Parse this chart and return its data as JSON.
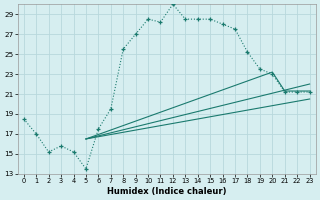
{
  "xlabel": "Humidex (Indice chaleur)",
  "background_color": "#d6eef0",
  "line_color": "#1a7a6e",
  "grid_color": "#b8d8dc",
  "xlim": [
    -0.5,
    23.5
  ],
  "ylim": [
    13,
    30
  ],
  "yticks": [
    13,
    15,
    17,
    19,
    21,
    23,
    25,
    27,
    29
  ],
  "xticks": [
    0,
    1,
    2,
    3,
    4,
    5,
    6,
    7,
    8,
    9,
    10,
    11,
    12,
    13,
    14,
    15,
    16,
    17,
    18,
    19,
    20,
    21,
    22,
    23
  ],
  "series1_x": [
    0,
    1,
    2,
    3,
    4,
    5,
    6,
    7,
    8,
    9,
    10,
    11,
    12,
    13,
    14,
    15,
    16,
    17,
    18,
    19,
    20,
    21,
    22,
    23
  ],
  "series1_y": [
    18.5,
    17.0,
    15.2,
    15.8,
    15.2,
    13.5,
    17.5,
    19.5,
    25.5,
    27.0,
    28.5,
    28.2,
    30.0,
    28.5,
    28.5,
    28.5,
    28.0,
    27.5,
    25.2,
    23.5,
    23.0,
    21.2,
    21.2,
    21.2
  ],
  "series2_x": [
    5,
    23
  ],
  "series2_y": [
    16.5,
    20.5
  ],
  "series3_x": [
    5,
    23
  ],
  "series3_y": [
    16.5,
    22.0
  ],
  "series4_x": [
    5,
    20,
    21,
    22,
    23
  ],
  "series4_y": [
    16.5,
    23.2,
    21.3,
    21.3,
    21.3
  ]
}
